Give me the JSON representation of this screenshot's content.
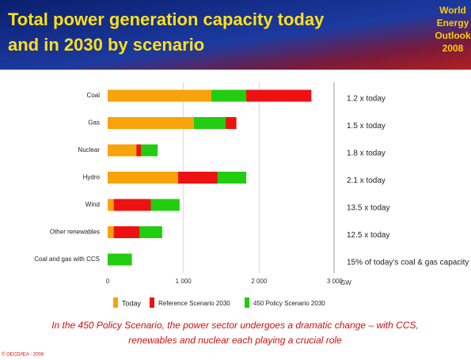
{
  "header": {
    "title_lines": [
      "Total power generation capacity today",
      "and in 2030 by scenario"
    ],
    "logo_lines": [
      "World",
      "Energy",
      "Outlook",
      "2008"
    ]
  },
  "chart_data": {
    "type": "bar",
    "orientation": "horizontal",
    "overlapped": true,
    "categories": [
      "Coal",
      "Gas",
      "Nuclear",
      "Hydro",
      "Wind",
      "Other renewables",
      "Coal and gas with CCS"
    ],
    "series": [
      {
        "name": "Today",
        "color": "#f7a30a",
        "values": [
          1370,
          1140,
          380,
          930,
          80,
          80,
          0
        ]
      },
      {
        "name": "Reference Scenario 2030",
        "color": "#ee1111",
        "values": [
          2690,
          1700,
          440,
          1450,
          570,
          420,
          0
        ]
      },
      {
        "name": "450 Policy Scenario 2030",
        "color": "#22cc11",
        "values": [
          1830,
          1560,
          660,
          1830,
          950,
          720,
          320
        ]
      }
    ],
    "annotations": [
      "1.2 x today",
      "1.5 x today",
      "1.8 x today",
      "2.1 x today",
      "13.5 x today",
      "12.5 x today",
      "15% of today’s coal & gas capacity"
    ],
    "xlim": [
      0,
      3000
    ],
    "xticks": [
      0,
      {
        "value": 1000,
        "label": "1 000"
      },
      {
        "value": 2000,
        "label": "2 000"
      },
      {
        "value": 3000,
        "label": "3 000"
      }
    ],
    "xlabel": "GW",
    "grid": true,
    "legend": "bottom"
  },
  "footer": {
    "caption_lines": [
      "In the 450 Policy Scenario, the power sector undergoes a dramatic change – with CCS,",
      "renewables and nuclear each playing a crucial role"
    ],
    "copyright": "© OECD/IEA - 2008"
  }
}
